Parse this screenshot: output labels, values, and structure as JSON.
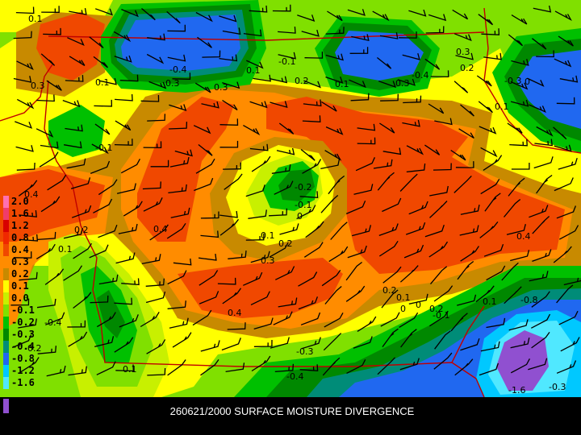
{
  "caption": "260621/2000 SURFACE MOISTURE DIVERGENCE",
  "legend": {
    "items": [
      {
        "label": "2.0",
        "color": "#ff70b0"
      },
      {
        "label": "1.6",
        "color": "#f03c6c"
      },
      {
        "label": "1.2",
        "color": "#d80000"
      },
      {
        "label": "0.8",
        "color": "#f02800"
      },
      {
        "label": "0.4",
        "color": "#f04800"
      },
      {
        "label": "0.3",
        "color": "#ff8c00"
      },
      {
        "label": "0.2",
        "color": "#c88a00"
      },
      {
        "label": "0.1",
        "color": "#ffff00"
      },
      {
        "label": "0.0",
        "color": "#c8f000"
      },
      {
        "label": "-0.1",
        "color": "#80e000"
      },
      {
        "label": "-0.2",
        "color": "#00c000"
      },
      {
        "label": "-0.3",
        "color": "#008800"
      },
      {
        "label": "-0.4",
        "color": "#008c78"
      },
      {
        "label": "-0.8",
        "color": "#2068f0"
      },
      {
        "label": "-1.2",
        "color": "#00c8ff"
      },
      {
        "label": "-1.6",
        "color": "#50e8ff"
      }
    ]
  },
  "contour_labels": [
    "0.1",
    "0.3",
    "0.1",
    "0.3",
    "-0.4",
    "0.1",
    "-0.1",
    "0.2",
    "0.3",
    "0.1",
    "0.3",
    "-0.4",
    "0.3",
    "0.2",
    "0",
    "-0.3",
    "0.1",
    "-0.1",
    "0.4",
    "0.2",
    "-0.2",
    "-0.1",
    "0",
    "0.1",
    "0.2",
    "0.3",
    "0.4",
    "0.4",
    "0.2",
    "0.1",
    "0",
    "-0.4",
    "0.2",
    "-0.1",
    "0",
    "0.1",
    "-0.2",
    "-0.8",
    "-0.3",
    "-0.4",
    "0.1",
    "-1.6",
    "-0.3",
    "0.1",
    "0.4"
  ]
}
